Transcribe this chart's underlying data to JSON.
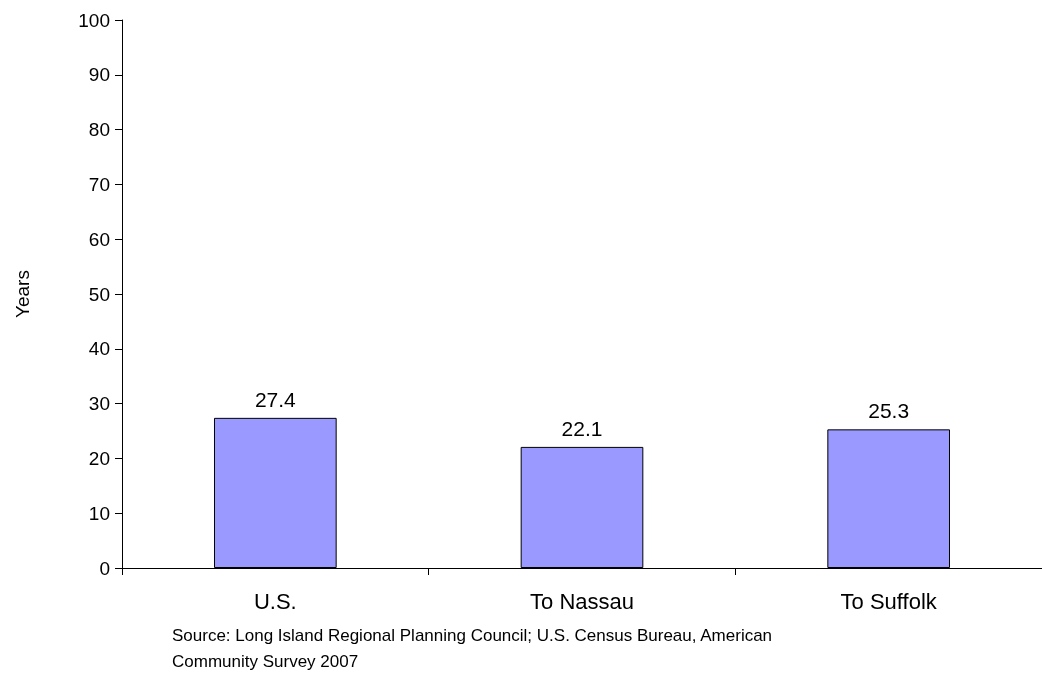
{
  "chart_data": {
    "type": "bar",
    "ylabel": "Years",
    "categories": [
      "U.S.",
      "To Nassau",
      "To Suffolk"
    ],
    "values": [
      27.4,
      22.1,
      25.3
    ],
    "color": "#9999ff",
    "ylim": [
      0,
      100
    ],
    "yticks": [
      0,
      10,
      20,
      30,
      40,
      50,
      60,
      70,
      80,
      90,
      100
    ],
    "grid": false,
    "data_labels": true,
    "annotations": [
      "Source: Long Island Regional Planning Council; U.S. Census Bureau, American Community Survey 2007"
    ]
  }
}
